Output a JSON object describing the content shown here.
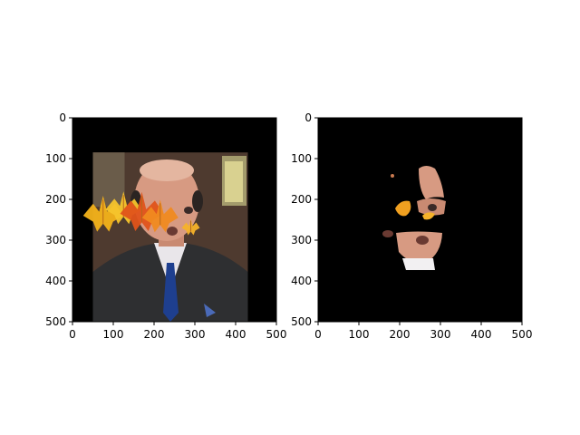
{
  "figure": {
    "background": "#ffffff"
  },
  "chart_data": [
    {
      "type": "image",
      "name": "left-panel-original-with-leaves",
      "xlim": [
        0,
        500
      ],
      "ylim": [
        500,
        0
      ],
      "xticks": [
        0,
        100,
        200,
        300,
        400,
        500
      ],
      "yticks": [
        0,
        100,
        200,
        300,
        400,
        500
      ],
      "xtick_labels": [
        "0",
        "100",
        "200",
        "300",
        "400",
        "500"
      ],
      "ytick_labels": [
        "0",
        "100",
        "200",
        "300",
        "400",
        "500"
      ],
      "title": "",
      "xlabel": "",
      "ylabel": "",
      "image_extent_data": {
        "x": [
          50,
          430
        ],
        "y": [
          85,
          500
        ]
      },
      "leaf_positions_data": [
        [
          75,
          240
        ],
        [
          125,
          225
        ],
        [
          170,
          235
        ],
        [
          215,
          245
        ],
        [
          290,
          270
        ]
      ],
      "leaf_colors": [
        "#f3b21a",
        "#f6c42c",
        "#e0531a",
        "#f08a20",
        "#f5b22a"
      ],
      "face_center_data": [
        205,
        270
      ],
      "colors": {
        "background": "#000000",
        "wall": "#4e3a2f",
        "suit": "#2e2f31",
        "shirt": "#e9e6ea",
        "tie": "#1e3f8f",
        "skin": "#d79a82"
      }
    },
    {
      "type": "image",
      "name": "right-panel-mask-result",
      "xlim": [
        0,
        500
      ],
      "ylim": [
        500,
        0
      ],
      "xticks": [
        0,
        100,
        200,
        300,
        400,
        500
      ],
      "yticks": [
        0,
        100,
        200,
        300,
        400,
        500
      ],
      "xtick_labels": [
        "0",
        "100",
        "200",
        "300",
        "400",
        "500"
      ],
      "ytick_labels": [
        "0",
        "100",
        "200",
        "300",
        "400",
        "500"
      ],
      "title": "",
      "xlabel": "",
      "ylabel": "",
      "visible_regions_data": [
        {
          "shape": "forehead",
          "center": [
            260,
            195
          ]
        },
        {
          "shape": "eye",
          "center": [
            280,
            225
          ]
        },
        {
          "shape": "chin",
          "center": [
            255,
            300
          ]
        },
        {
          "shape": "leaf-fragment",
          "center": [
            215,
            222
          ]
        },
        {
          "shape": "leaf-fragment",
          "center": [
            270,
            240
          ]
        },
        {
          "shape": "dot",
          "center": [
            185,
            145
          ]
        },
        {
          "shape": "dot",
          "center": [
            175,
            285
          ]
        }
      ],
      "colors": {
        "background": "#000000",
        "skin": "#d79a82",
        "leaf": "#f0a020",
        "shirt": "#f2f0f2"
      }
    }
  ]
}
